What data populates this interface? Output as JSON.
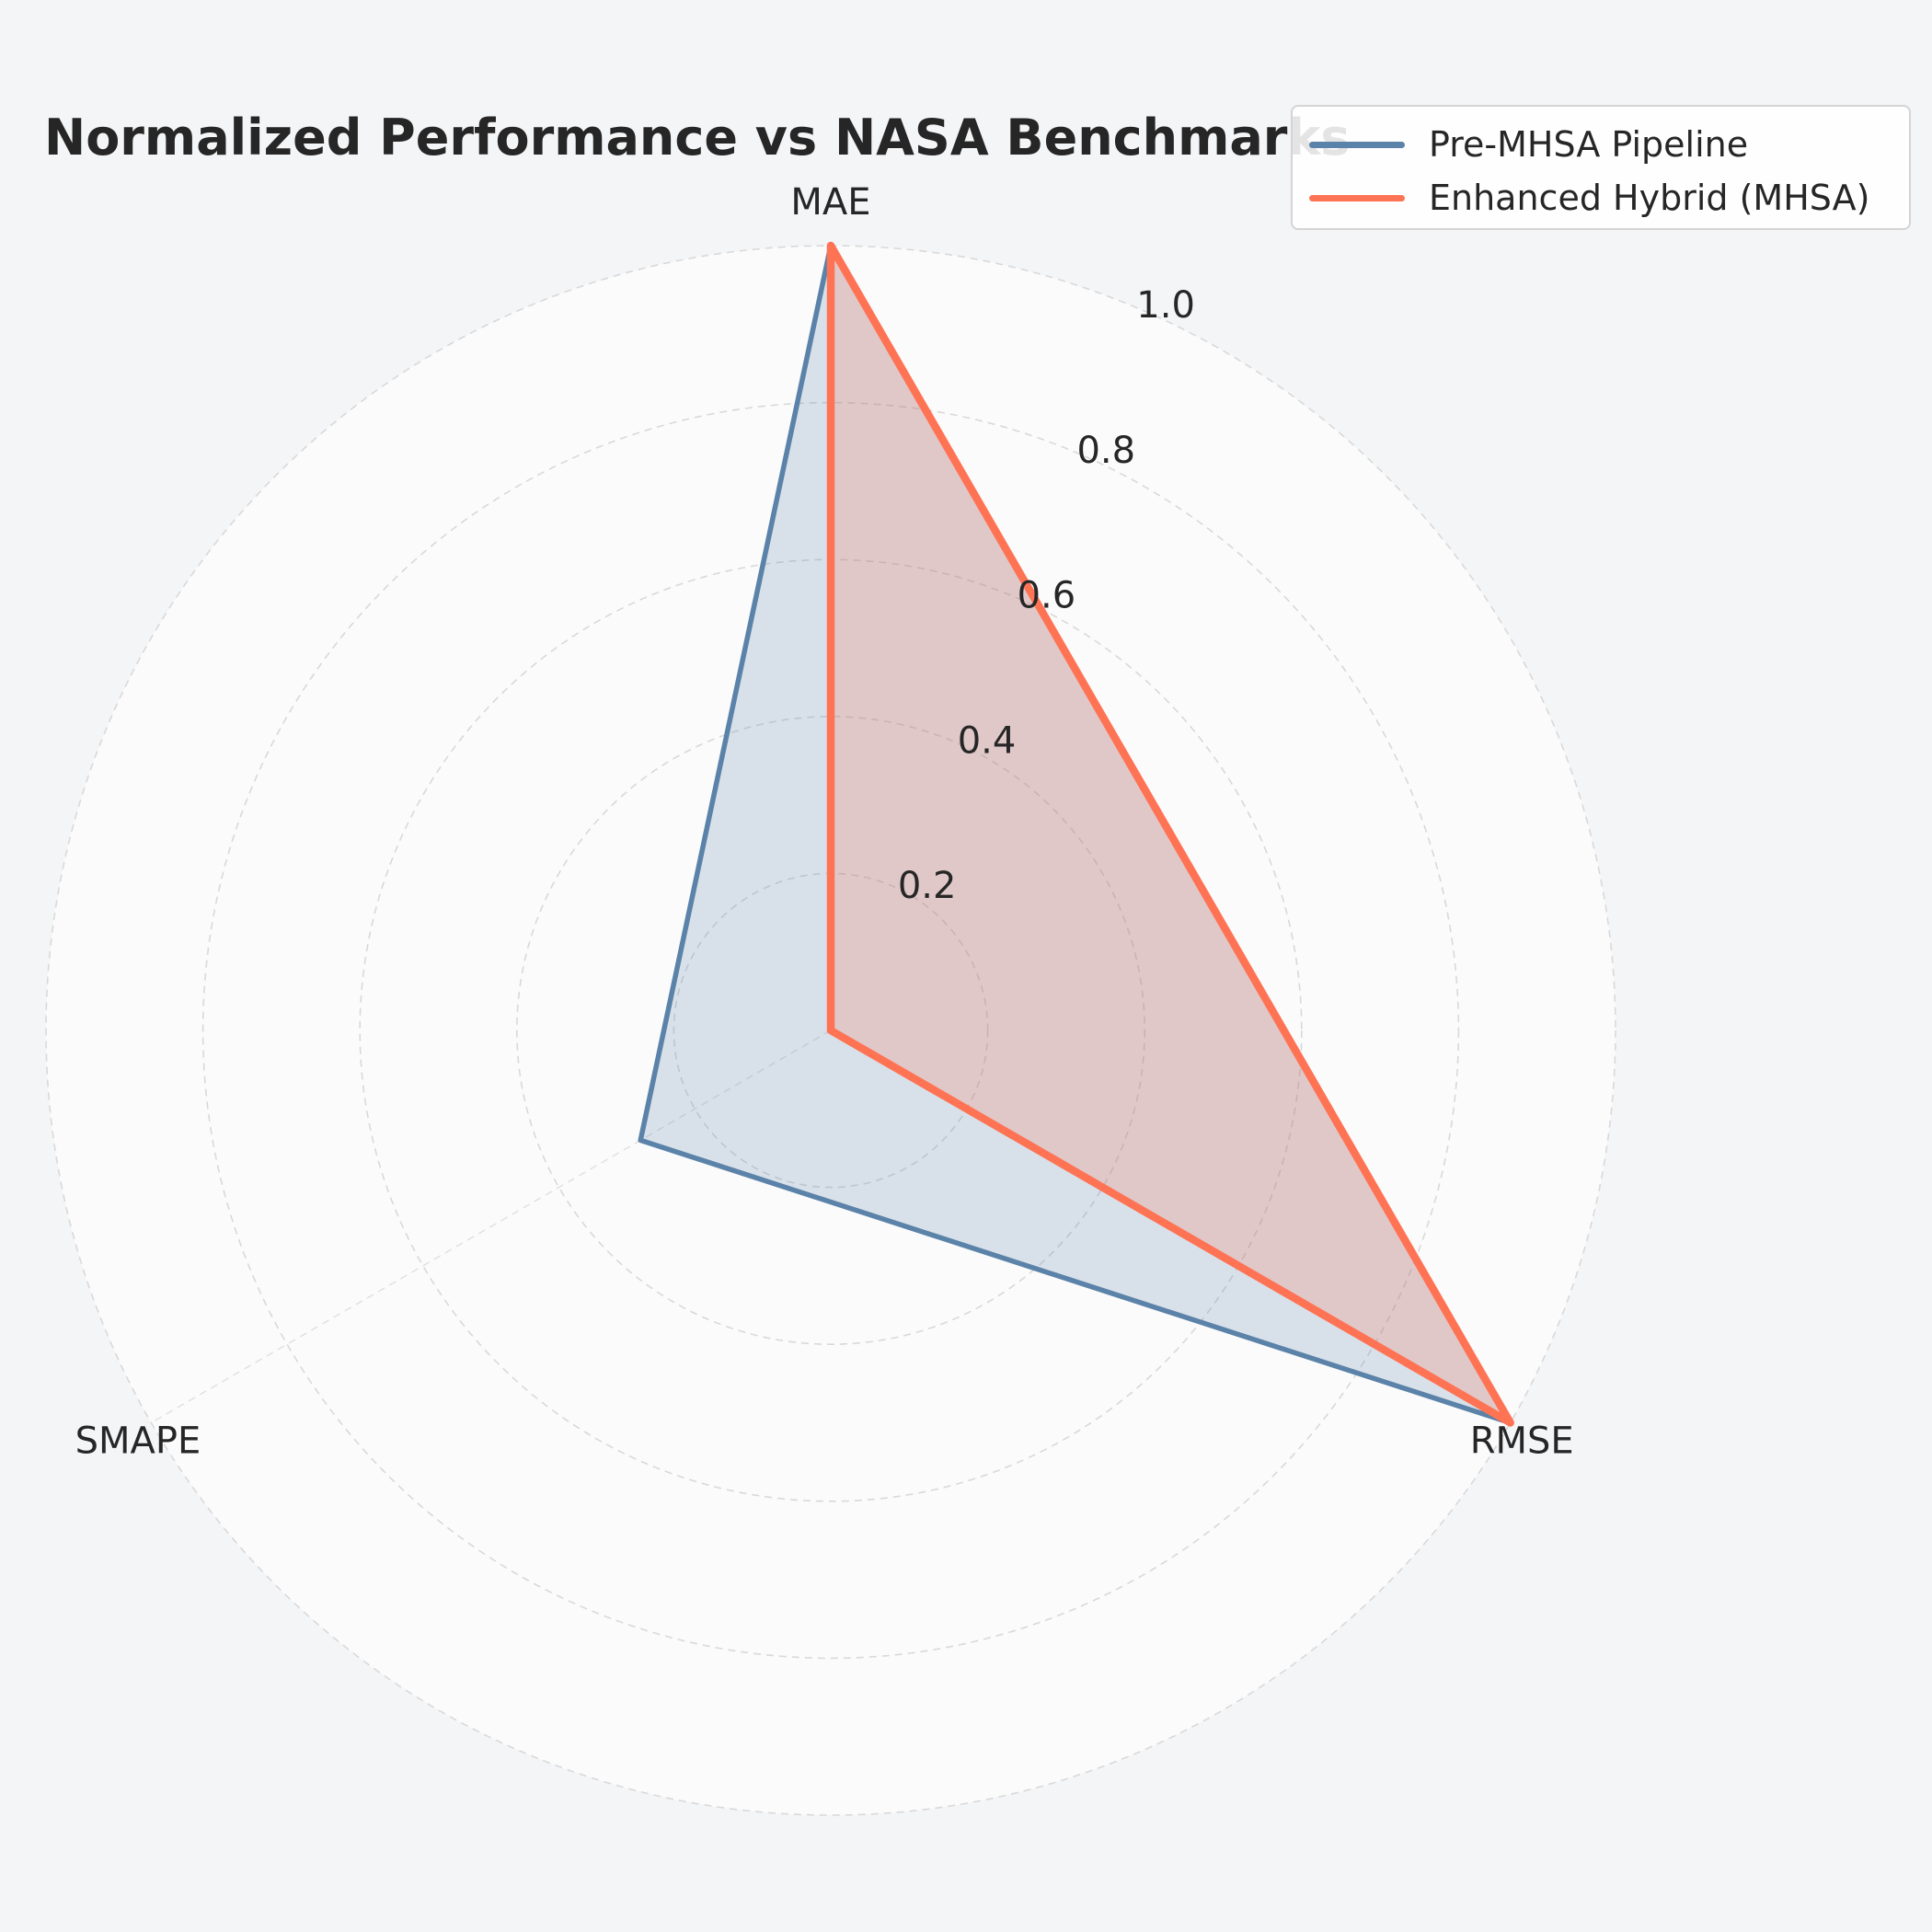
{
  "chart_data": {
    "type": "radar",
    "title": "Normalized Performance vs NASA Benchmarks",
    "axes": [
      "MAE",
      "RMSE",
      "SMAPE"
    ],
    "radial_ticks": [
      "0.2",
      "0.4",
      "0.6",
      "0.8",
      "1.0"
    ],
    "radial_tick_values": [
      0.2,
      0.4,
      0.6,
      0.8,
      1.0
    ],
    "rlim": [
      0,
      1.0
    ],
    "grid": true,
    "legend_position": "top-right",
    "series": [
      {
        "name": "Pre-MHSA Pipeline",
        "values": [
          1.0,
          1.0,
          0.28
        ],
        "color": "#5b82a8"
      },
      {
        "name": "Enhanced Hybrid (MHSA)",
        "values": [
          1.0,
          1.0,
          0.0
        ],
        "color": "#ff7355"
      }
    ]
  }
}
